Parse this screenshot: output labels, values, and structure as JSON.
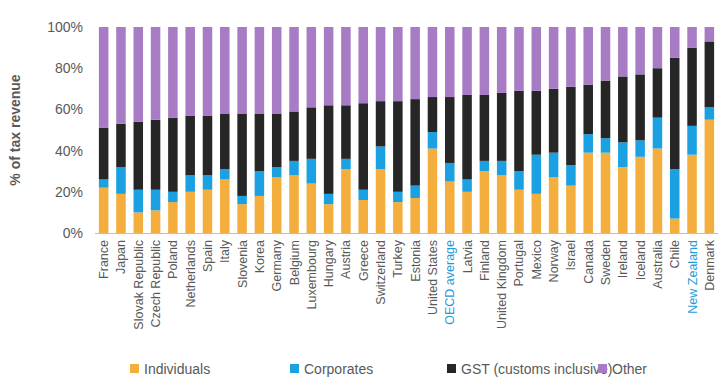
{
  "chart_data": {
    "type": "bar",
    "stacked": true,
    "grid": false,
    "legend": "bottom",
    "y_label": "% of tax revenue",
    "categories": [
      "France",
      "Japan",
      "Slovak Republic",
      "Czech Republic",
      "Poland",
      "Netherlands",
      "Spain",
      "Italy",
      "Slovenia",
      "Korea",
      "Germany",
      "Belgium",
      "Luxembourg",
      "Hungary",
      "Austria",
      "Greece",
      "Switzerland",
      "Turkey",
      "Estonia",
      "United States",
      "OECD average",
      "Latvia",
      "Finland",
      "United Kingdom",
      "Portugal",
      "Mexico",
      "Norway",
      "Israel",
      "Canada",
      "Sweden",
      "Ireland",
      "Iceland",
      "Australia",
      "Chile",
      "New Zealand",
      "Denmark"
    ],
    "series": [
      {
        "name": "Individuals",
        "color": "#f4ae3d",
        "values": [
          22,
          19,
          10,
          11,
          15,
          20,
          21,
          26,
          14,
          18,
          27,
          28,
          24,
          14,
          31,
          16,
          31,
          15,
          17,
          41,
          25,
          20,
          30,
          28,
          21,
          19,
          27,
          23,
          39,
          39,
          32,
          37,
          41,
          7,
          38,
          55
        ]
      },
      {
        "name": "Corporates",
        "color": "#1ba1e2",
        "values": [
          4,
          13,
          11,
          10,
          5,
          8,
          7,
          5,
          4,
          12,
          5,
          7,
          12,
          5,
          5,
          5,
          11,
          5,
          6,
          8,
          9,
          6,
          5,
          7,
          9,
          19,
          12,
          10,
          9,
          7,
          12,
          8,
          15,
          24,
          14,
          6
        ]
      },
      {
        "name": "GST (customs inclusive)",
        "color": "#262626",
        "values": [
          25,
          21,
          33,
          34,
          36,
          29,
          29,
          27,
          40,
          28,
          26,
          24,
          25,
          43,
          26,
          42,
          22,
          44,
          42,
          17,
          32,
          41,
          32,
          33,
          39,
          31,
          31,
          38,
          24,
          28,
          32,
          32,
          24,
          54,
          38,
          32
        ]
      },
      {
        "name": "Other",
        "color": "#a77cc4",
        "values": [
          49,
          47,
          46,
          45,
          44,
          43,
          43,
          42,
          42,
          42,
          42,
          41,
          39,
          38,
          38,
          37,
          36,
          36,
          35,
          34,
          34,
          33,
          33,
          32,
          31,
          31,
          30,
          29,
          28,
          26,
          24,
          23,
          20,
          15,
          10,
          7
        ]
      }
    ],
    "ylim": [
      0,
      100
    ],
    "yticks": [
      {
        "value": 0,
        "label": "0%"
      },
      {
        "value": 20,
        "label": "20%"
      },
      {
        "value": 40,
        "label": "40%"
      },
      {
        "value": 60,
        "label": "60%"
      },
      {
        "value": 80,
        "label": "80%"
      },
      {
        "value": 100,
        "label": "100%"
      }
    ]
  }
}
